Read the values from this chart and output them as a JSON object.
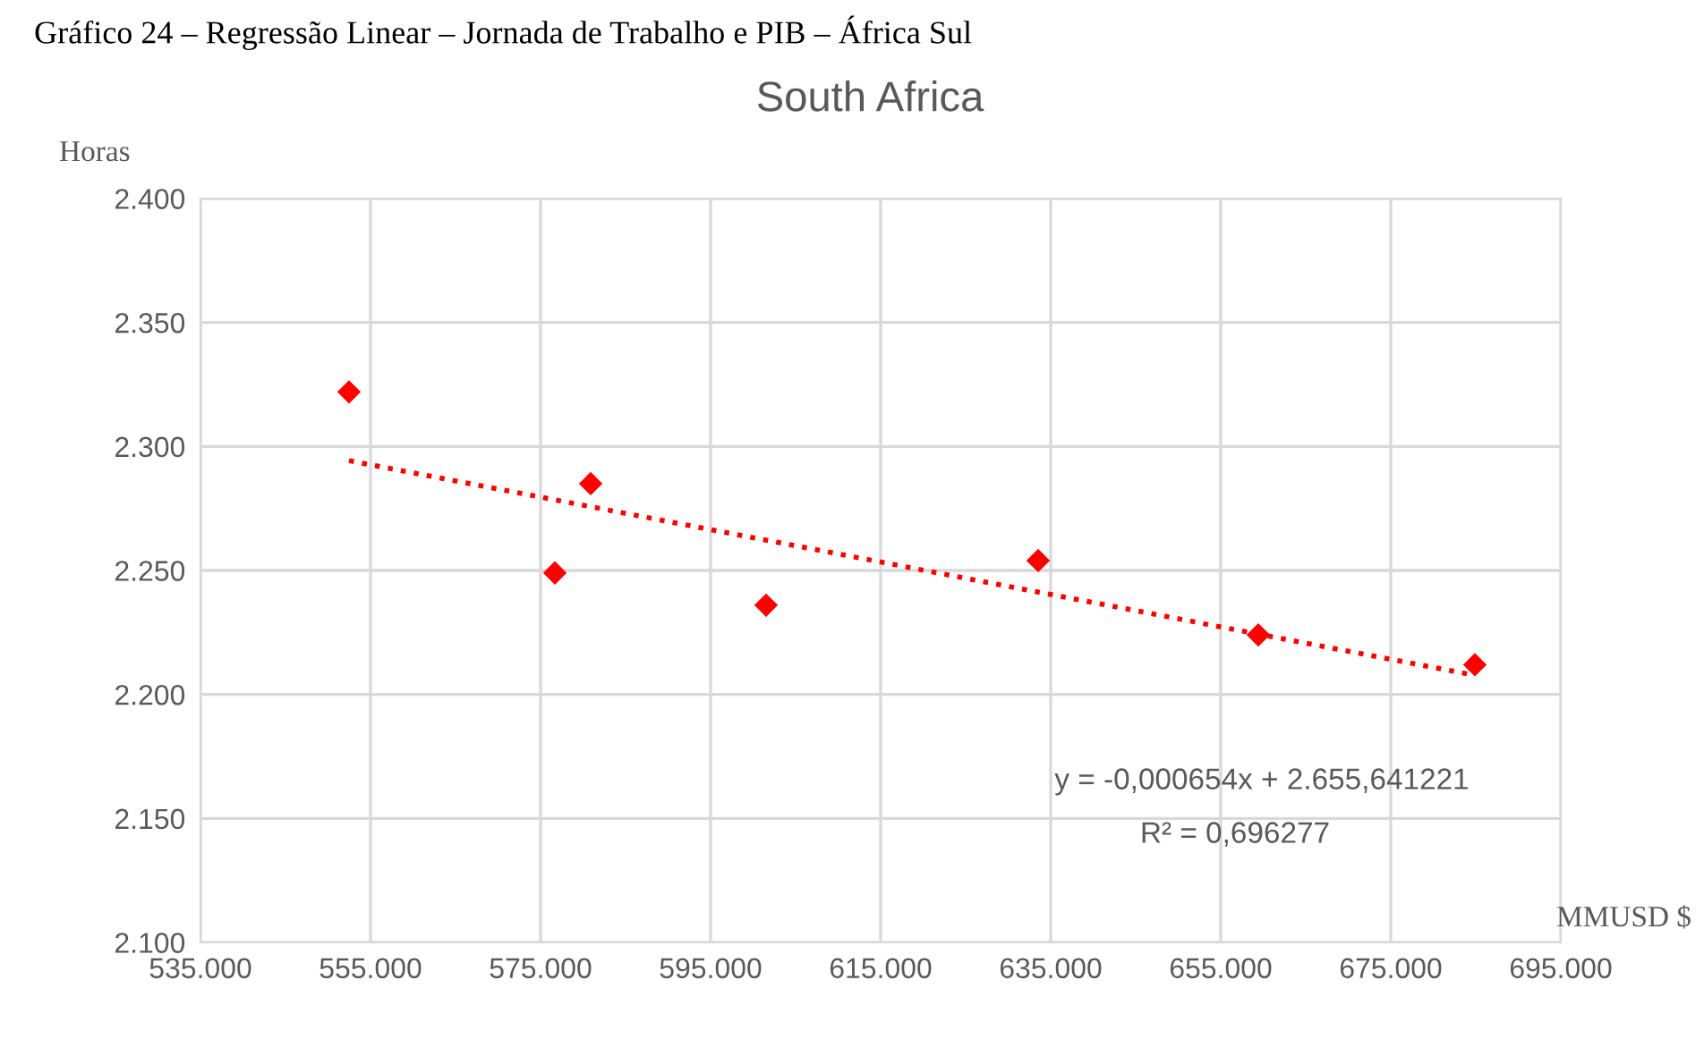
{
  "chart_data": {
    "type": "scatter",
    "title": "Gráfico 24 – Regressão Linear – Jornada de Trabalho e PIB – África Sul",
    "subtitle": "South Africa",
    "xlabel": "MMUSD $",
    "ylabel": "Horas",
    "series": [
      {
        "color": "#ff0000",
        "marker": "diamond",
        "x": [
          552474,
          576684,
          580895,
          601526,
          633526,
          659421,
          684895
        ],
        "values": [
          2322,
          2249,
          2285,
          2236,
          2254,
          2224,
          2212
        ]
      },
      {
        "type": "line",
        "color": "#ff0000",
        "line_style": "dotted",
        "marker": "none",
        "x": [
          552474,
          684895
        ],
        "values": [
          2294.3,
          2207.7
        ]
      }
    ],
    "annotations": [
      "y = -0,000654x + 2.655,641221",
      "R² = 0,696277"
    ],
    "xlim": [
      535000,
      695000
    ],
    "xticks": [
      {
        "value": 535000,
        "label": "535.000"
      },
      {
        "value": 555000,
        "label": "555.000"
      },
      {
        "value": 575000,
        "label": "575.000"
      },
      {
        "value": 595000,
        "label": "595.000"
      },
      {
        "value": 615000,
        "label": "615.000"
      },
      {
        "value": 635000,
        "label": "635.000"
      },
      {
        "value": 655000,
        "label": "655.000"
      },
      {
        "value": 675000,
        "label": "675.000"
      },
      {
        "value": 695000,
        "label": "695.000"
      }
    ],
    "ylim": [
      2100,
      2400
    ],
    "yticks": [
      {
        "value": 2100,
        "label": "2.100"
      },
      {
        "value": 2150,
        "label": "2.150"
      },
      {
        "value": 2200,
        "label": "2.200"
      },
      {
        "value": 2250,
        "label": "2.250"
      },
      {
        "value": 2300,
        "label": "2.300"
      },
      {
        "value": 2350,
        "label": "2.350"
      },
      {
        "value": 2400,
        "label": "2.400"
      }
    ],
    "grid": true,
    "legend": false
  }
}
